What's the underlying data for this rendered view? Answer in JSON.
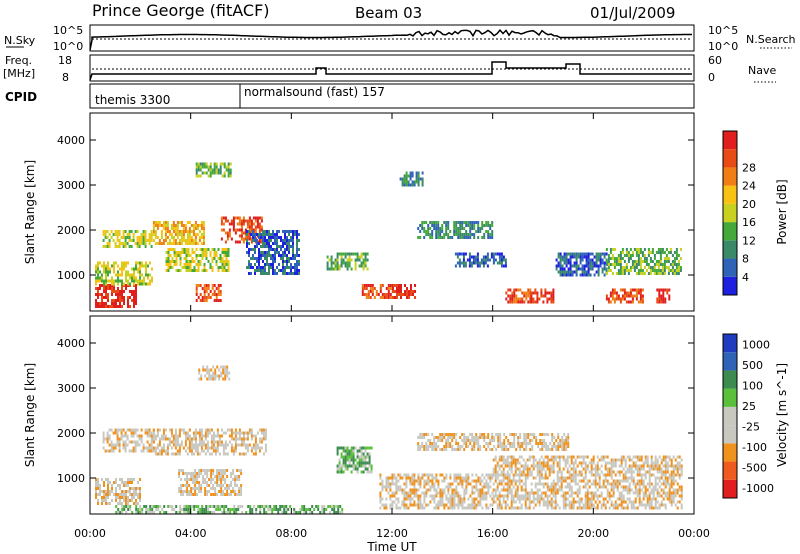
{
  "header": {
    "station": "Prince George (fitACF)",
    "beam": "Beam 03",
    "date": "01/Jul/2009"
  },
  "panels": {
    "nsky_label": "N.Sky",
    "nsky_ticks": [
      "10^5",
      "10^0"
    ],
    "nsearch_label": "N.Search",
    "nsearch_ticks": [
      "10^5",
      "10^0"
    ],
    "freq_label_1": "Freq.",
    "freq_label_2": "[MHz]",
    "freq_ticks": [
      "18",
      "8"
    ],
    "nave_label": "Nave",
    "nave_ticks": [
      "60",
      "0"
    ],
    "cpid_label": "CPID",
    "cpid_1": "themis 3300",
    "cpid_2": "normalsound (fast) 157"
  },
  "colors": {
    "power": [
      "#1f1fe0",
      "#2f63b8",
      "#3a8a6a",
      "#44a83a",
      "#c8d020",
      "#f7c214",
      "#f07e14",
      "#e84c14",
      "#e01e1e"
    ],
    "velocity": [
      "#e01e1e",
      "#f05a1e",
      "#f0921e",
      "#c8c8c0",
      "#c8c8c0",
      "#5ac03c",
      "#3c8c50",
      "#2f63b8",
      "#1f3cc0"
    ]
  },
  "chart_data": [
    {
      "type": "heatmap",
      "ylabel": "Slant Range [km]",
      "xlabel": "",
      "x_ticks": [
        "00:00",
        "04:00",
        "08:00",
        "12:00",
        "16:00",
        "20:00",
        "00:00"
      ],
      "y_ticks": [
        "1000",
        "2000",
        "3000",
        "4000"
      ],
      "ylim": [
        200,
        4600
      ],
      "xlim": [
        0,
        24
      ],
      "colorbar_label": "Power [dB]",
      "colorbar_ticks": [
        "4",
        "8",
        "12",
        "16",
        "20",
        "24",
        "28"
      ],
      "blobs": [
        {
          "t0": 0.2,
          "t1": 1.8,
          "r0": 300,
          "r1": 800,
          "level": 8
        },
        {
          "t0": 0.2,
          "t1": 2.5,
          "r0": 800,
          "r1": 1300,
          "level": 4
        },
        {
          "t0": 0.5,
          "t1": 2.5,
          "r0": 1600,
          "r1": 2000,
          "level": 4
        },
        {
          "t0": 2.5,
          "t1": 4.5,
          "r0": 1700,
          "r1": 2200,
          "level": 5
        },
        {
          "t0": 4.2,
          "t1": 5.2,
          "r0": 400,
          "r1": 800,
          "level": 7
        },
        {
          "t0": 5.2,
          "t1": 6.8,
          "r0": 1700,
          "r1": 2300,
          "level": 7
        },
        {
          "t0": 3.0,
          "t1": 5.5,
          "r0": 1100,
          "r1": 1600,
          "level": 4
        },
        {
          "t0": 6.2,
          "t1": 8.3,
          "r0": 1000,
          "r1": 2000,
          "level": 1
        },
        {
          "t0": 9.4,
          "t1": 11.0,
          "r0": 1100,
          "r1": 1500,
          "level": 3
        },
        {
          "t0": 10.8,
          "t1": 12.0,
          "r0": 500,
          "r1": 800,
          "level": 7
        },
        {
          "t0": 12.0,
          "t1": 12.9,
          "r0": 500,
          "r1": 800,
          "level": 8
        },
        {
          "t0": 13.0,
          "t1": 16.0,
          "r0": 1800,
          "r1": 2200,
          "level": 2
        },
        {
          "t0": 12.3,
          "t1": 13.2,
          "r0": 3000,
          "r1": 3300,
          "level": 2
        },
        {
          "t0": 14.5,
          "t1": 16.5,
          "r0": 1200,
          "r1": 1500,
          "level": 1
        },
        {
          "t0": 16.5,
          "t1": 17.5,
          "r0": 400,
          "r1": 700,
          "level": 7
        },
        {
          "t0": 17.5,
          "t1": 18.4,
          "r0": 400,
          "r1": 700,
          "level": 8
        },
        {
          "t0": 18.5,
          "t1": 20.5,
          "r0": 1000,
          "r1": 1500,
          "level": 1
        },
        {
          "t0": 20.5,
          "t1": 23.5,
          "r0": 1000,
          "r1": 1600,
          "level": 3
        },
        {
          "t0": 20.5,
          "t1": 22.0,
          "r0": 400,
          "r1": 700,
          "level": 7
        },
        {
          "t0": 22.5,
          "t1": 23.0,
          "r0": 400,
          "r1": 700,
          "level": 8
        },
        {
          "t0": 4.2,
          "t1": 5.6,
          "r0": 3200,
          "r1": 3500,
          "level": 3
        }
      ]
    },
    {
      "type": "heatmap",
      "ylabel": "Slant Range [km]",
      "xlabel": "Time UT",
      "x_ticks": [
        "00:00",
        "04:00",
        "08:00",
        "12:00",
        "16:00",
        "20:00",
        "00:00"
      ],
      "y_ticks": [
        "1000",
        "2000",
        "3000",
        "4000"
      ],
      "ylim": [
        200,
        4600
      ],
      "xlim": [
        0,
        24
      ],
      "colorbar_label": "Velocity [m s^-1]",
      "colorbar_ticks": [
        "1000",
        "500",
        "100",
        "25",
        "-25",
        "-100",
        "-500",
        "-1000"
      ],
      "blobs": [
        {
          "t0": 0.5,
          "t1": 2.5,
          "r0": 1600,
          "r1": 2100,
          "level": 3
        },
        {
          "t0": 0.2,
          "t1": 2.0,
          "r0": 400,
          "r1": 1000,
          "level": 3
        },
        {
          "t0": 2.5,
          "t1": 7.0,
          "r0": 1500,
          "r1": 2100,
          "level": 3
        },
        {
          "t0": 3.5,
          "t1": 6.0,
          "r0": 600,
          "r1": 1200,
          "level": 3
        },
        {
          "t0": 9.8,
          "t1": 11.2,
          "r0": 1100,
          "r1": 1700,
          "level": 5
        },
        {
          "t0": 11.5,
          "t1": 16.0,
          "r0": 300,
          "r1": 1100,
          "level": 3
        },
        {
          "t0": 13.0,
          "t1": 19.0,
          "r0": 1600,
          "r1": 2000,
          "level": 3
        },
        {
          "t0": 16.0,
          "t1": 23.5,
          "r0": 300,
          "r1": 1500,
          "level": 3
        },
        {
          "t0": 1.0,
          "t1": 10.0,
          "r0": 200,
          "r1": 400,
          "level": 5
        },
        {
          "t0": 4.3,
          "t1": 5.5,
          "r0": 3200,
          "r1": 3500,
          "level": 3
        }
      ]
    }
  ]
}
